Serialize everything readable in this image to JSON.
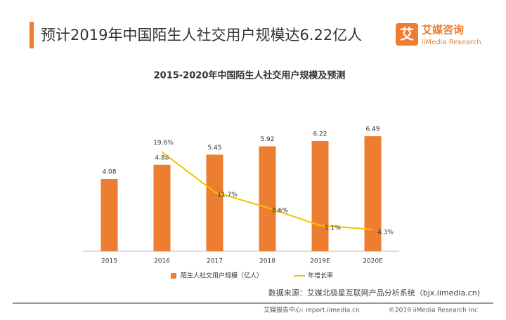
{
  "header": {
    "title": "预计2019年中国陌生人社交用户规模达6.22亿人"
  },
  "logo": {
    "icon": "艾",
    "name": "艾媒咨询",
    "english": "iiMedia Research"
  },
  "chart_data": {
    "type": "combo",
    "title": "2015-2020年中国陌生人社交用户规模及预测",
    "categories": [
      "2015",
      "2016",
      "2017",
      "2018",
      "2019E",
      "2020E"
    ],
    "series": [
      {
        "name": "陌生人社交用户规模（亿人）",
        "type": "bar",
        "color": "#ed7d31",
        "values": [
          4.08,
          4.88,
          5.45,
          5.92,
          6.22,
          6.49
        ]
      },
      {
        "name": "年增长率",
        "type": "line",
        "axis": "y2",
        "color": "#f2c200",
        "values": [
          null,
          19.6,
          11.7,
          8.6,
          5.1,
          4.3
        ],
        "value_labels": [
          null,
          "19.6%",
          "11.7%",
          "8.6%",
          "5.1%",
          "4.3%"
        ]
      }
    ],
    "ylim": [
      0,
      8
    ],
    "y2lim": [
      0,
      28
    ],
    "legend": "bottom"
  },
  "source": "数据来源：艾媒北极星互联网产品分析系统（bjx.iimedia.cn)",
  "footer": {
    "left": "艾媒报告中心: report.iimedia.cn",
    "right": "©2019  iiMedia Research Inc"
  }
}
